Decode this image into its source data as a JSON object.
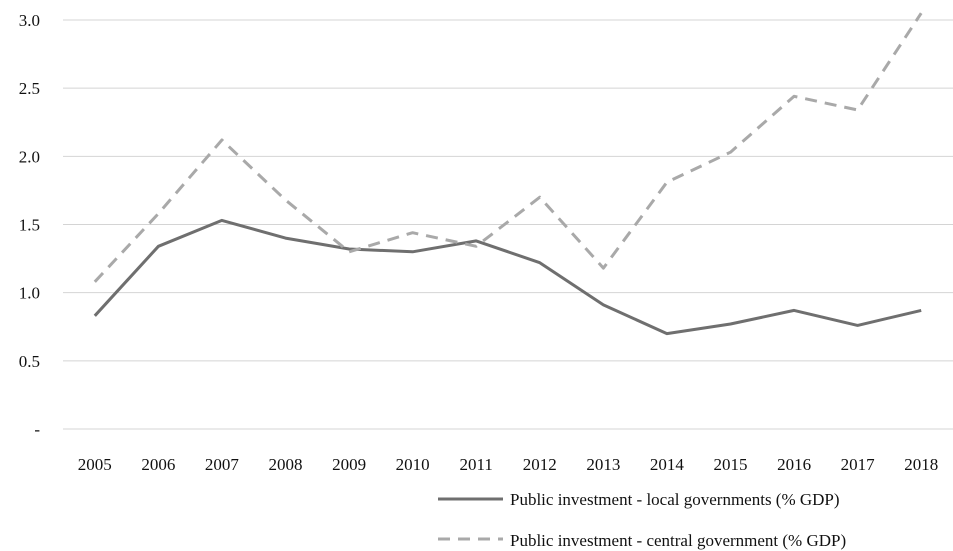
{
  "chart_data": {
    "type": "line",
    "x": [
      "2005",
      "2006",
      "2007",
      "2008",
      "2009",
      "2010",
      "2011",
      "2012",
      "2013",
      "2014",
      "2015",
      "2016",
      "2017",
      "2018"
    ],
    "series": [
      {
        "name": "Public investment - local governments (% GDP)",
        "color": "#6f6f6f",
        "dash": "solid",
        "values": [
          0.83,
          1.34,
          1.53,
          1.4,
          1.32,
          1.3,
          1.38,
          1.22,
          0.91,
          0.7,
          0.77,
          0.87,
          0.76,
          0.87
        ]
      },
      {
        "name": "Public investment - central government (% GDP)",
        "color": "#a9a9a9",
        "dash": "dashed",
        "values": [
          1.08,
          1.58,
          2.12,
          1.68,
          1.3,
          1.44,
          1.34,
          1.7,
          1.18,
          1.81,
          2.03,
          2.44,
          2.34,
          3.05
        ]
      }
    ],
    "y_ticks": [
      {
        "value": 0,
        "label": "-"
      },
      {
        "value": 0.5,
        "label": "0.5"
      },
      {
        "value": 1.0,
        "label": "1.0"
      },
      {
        "value": 1.5,
        "label": "1.5"
      },
      {
        "value": 2.0,
        "label": "2.0"
      },
      {
        "value": 2.5,
        "label": "2.5"
      },
      {
        "value": 3.0,
        "label": "3.0"
      }
    ],
    "ylim": [
      0,
      3.0
    ],
    "grid": true,
    "legend": "bottom-right"
  }
}
